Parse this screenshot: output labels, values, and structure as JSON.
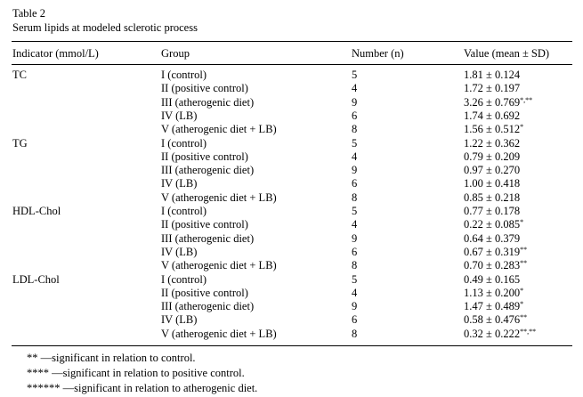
{
  "table": {
    "number": "Table 2",
    "title": "Serum lipids at modeled sclerotic process",
    "columns": [
      "Indicator (mmol/L)",
      "Group",
      "Number (n)",
      "Value (mean ± SD)"
    ],
    "indicators": [
      {
        "name": "TC",
        "rows": [
          {
            "group": "I (control)",
            "n": "5",
            "value": "1.81 ± 0.124",
            "sig": ""
          },
          {
            "group": "II (positive control)",
            "n": "4",
            "value": "1.72 ± 0.197",
            "sig": ""
          },
          {
            "group": "III (atherogenic diet)",
            "n": "9",
            "value": "3.26 ± 0.769",
            "sig": "*,**"
          },
          {
            "group": "IV (LB)",
            "n": "6",
            "value": "1.74 ± 0.692",
            "sig": ""
          },
          {
            "group": "V (atherogenic diet + LB)",
            "n": "8",
            "value": "1.56 ± 0.512",
            "sig": "*"
          }
        ]
      },
      {
        "name": "TG",
        "rows": [
          {
            "group": "I (control)",
            "n": "5",
            "value": "1.22 ± 0.362",
            "sig": ""
          },
          {
            "group": "II (positive control)",
            "n": "4",
            "value": "0.79 ± 0.209",
            "sig": ""
          },
          {
            "group": "III (atherogenic diet)",
            "n": "9",
            "value": "0.97 ± 0.270",
            "sig": ""
          },
          {
            "group": "IV (LB)",
            "n": "6",
            "value": "1.00 ± 0.418",
            "sig": ""
          },
          {
            "group": "V (atherogenic diet + LB)",
            "n": "8",
            "value": "0.85 ± 0.218",
            "sig": ""
          }
        ]
      },
      {
        "name": "HDL-Chol",
        "rows": [
          {
            "group": "I (control)",
            "n": "5",
            "value": "0.77 ± 0.178",
            "sig": ""
          },
          {
            "group": "II (positive control)",
            "n": "4",
            "value": "0.22 ± 0.085",
            "sig": "*"
          },
          {
            "group": "III (atherogenic diet)",
            "n": "9",
            "value": "0.64 ± 0.379",
            "sig": ""
          },
          {
            "group": "IV (LB)",
            "n": "6",
            "value": "0.67 ± 0.319",
            "sig": "**"
          },
          {
            "group": "V (atherogenic diet + LB)",
            "n": "8",
            "value": "0.70 ± 0.283",
            "sig": "**"
          }
        ]
      },
      {
        "name": "LDL-Chol",
        "rows": [
          {
            "group": "I (control)",
            "n": "5",
            "value": "0.49 ± 0.165",
            "sig": ""
          },
          {
            "group": "II (positive control)",
            "n": "4",
            "value": "1.13 ± 0.200",
            "sig": "*"
          },
          {
            "group": "III (atherogenic diet)",
            "n": "9",
            "value": "1.47 ± 0.489",
            "sig": "*"
          },
          {
            "group": "IV (LB)",
            "n": "6",
            "value": "0.58 ± 0.476",
            "sig": "**"
          },
          {
            "group": "V (atherogenic diet + LB)",
            "n": "8",
            "value": "0.32 ± 0.222",
            "sig": "**,**"
          }
        ]
      }
    ],
    "footnotes": [
      {
        "mark": "**",
        "text": "—significant in relation to control."
      },
      {
        "mark": "****",
        "text": "—significant in relation to positive control."
      },
      {
        "mark": "******",
        "text": "—significant in relation to atherogenic diet."
      }
    ]
  }
}
